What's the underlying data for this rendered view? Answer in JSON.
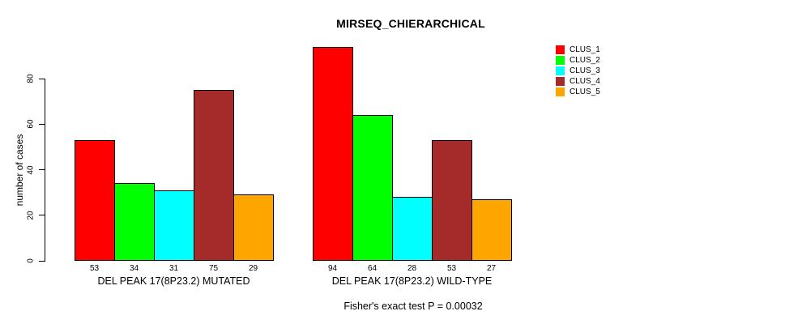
{
  "title": "MIRSEQ_CHIERARCHICAL",
  "y_axis": {
    "label": "number of cases",
    "ticks": [
      "0",
      "20",
      "40",
      "60",
      "80"
    ]
  },
  "footer": "Fisher's exact test P = 0.00032",
  "legend": {
    "items": [
      {
        "label": "CLUS_1",
        "color": "#FF0000"
      },
      {
        "label": "CLUS_2",
        "color": "#00FF00"
      },
      {
        "label": "CLUS_3",
        "color": "#00FFFF"
      },
      {
        "label": "CLUS_4",
        "color": "#A52A2A"
      },
      {
        "label": "CLUS_5",
        "color": "#FFA500"
      }
    ]
  },
  "chart_data": {
    "type": "bar",
    "title": "MIRSEQ_CHIERARCHICAL",
    "xlabel": "",
    "ylabel": "number of cases",
    "ylim": [
      0,
      94
    ],
    "yticks": [
      0,
      20,
      40,
      60,
      80
    ],
    "grid": false,
    "legend_position": "right",
    "bar_borders": "#000000",
    "bar_value_labels": true,
    "categories": [
      "DEL PEAK 17(8P23.2) MUTATED",
      "DEL PEAK 17(8P23.2) WILD-TYPE"
    ],
    "series": [
      {
        "name": "CLUS_1",
        "color": "#FF0000",
        "values": [
          53,
          94
        ]
      },
      {
        "name": "CLUS_2",
        "color": "#00FF00",
        "values": [
          34,
          64
        ]
      },
      {
        "name": "CLUS_3",
        "color": "#00FFFF",
        "values": [
          31,
          28
        ]
      },
      {
        "name": "CLUS_4",
        "color": "#A52A2A",
        "values": [
          75,
          53
        ]
      },
      {
        "name": "CLUS_5",
        "color": "#FFA500",
        "values": [
          29,
          27
        ]
      }
    ],
    "annotation": "Fisher's exact test P = 0.00032"
  }
}
